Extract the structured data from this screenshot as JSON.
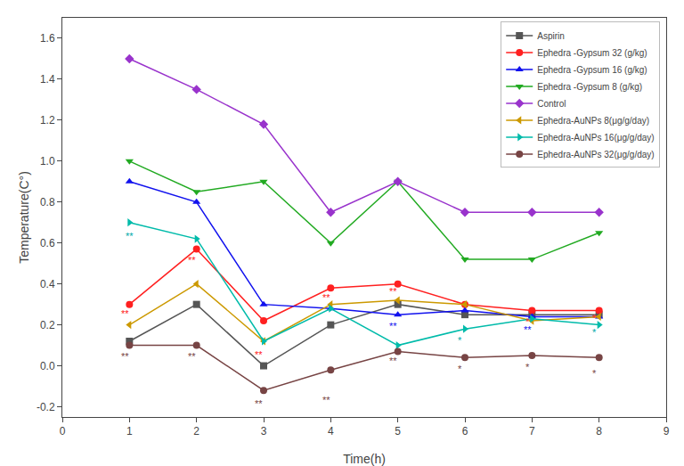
{
  "chart_data": {
    "type": "line",
    "xlabel": "Time(h)",
    "ylabel": "Temperature(C°)",
    "xlim": [
      0,
      9
    ],
    "ylim": [
      -0.25,
      1.7
    ],
    "xticks": [
      0,
      1,
      2,
      3,
      4,
      5,
      6,
      7,
      8,
      9
    ],
    "yticks": [
      -0.2,
      {
        "value": 0.0,
        "label": "0.0"
      },
      0.2,
      0.4,
      0.6,
      0.8,
      {
        "value": 1.0,
        "label": "1.0"
      },
      1.2,
      1.4,
      1.6
    ],
    "grid": false,
    "legend": "upper right",
    "x": [
      1,
      2,
      3,
      4,
      5,
      6,
      7,
      8
    ],
    "series": [
      {
        "name": "Aspirin",
        "color": "#555555",
        "marker": "square",
        "values": [
          0.12,
          0.3,
          0.0,
          0.2,
          0.3,
          0.25,
          0.25,
          0.25
        ]
      },
      {
        "name": "Ephedra -Gypsum 32 (g/kg)",
        "color": "#ff2020",
        "marker": "circle",
        "values": [
          0.3,
          0.57,
          0.22,
          0.38,
          0.4,
          0.3,
          0.27,
          0.27
        ]
      },
      {
        "name": "Ephedra -Gypsum 16 (g/kg)",
        "color": "#1111ee",
        "marker": "triangle-up",
        "values": [
          0.9,
          0.8,
          0.3,
          0.28,
          0.25,
          0.27,
          0.24,
          0.24
        ]
      },
      {
        "name": "Ephedra -Gypsum 8 (g/kg)",
        "color": "#22aa22",
        "marker": "triangle-down",
        "values": [
          1.0,
          0.85,
          0.9,
          0.6,
          0.9,
          0.52,
          0.52,
          0.65
        ]
      },
      {
        "name": "Control",
        "color": "#9933cc",
        "marker": "diamond",
        "values": [
          1.5,
          1.35,
          1.18,
          0.75,
          0.9,
          0.75,
          0.75,
          0.75
        ]
      },
      {
        "name": "Ephedra-AuNPs 8(μg/g/day)",
        "color": "#cc9900",
        "marker": "triangle-left",
        "values": [
          0.2,
          0.4,
          0.12,
          0.3,
          0.32,
          0.3,
          0.22,
          0.24
        ]
      },
      {
        "name": "Ephedra-AuNPs 16(μg/g/day)",
        "color": "#00bbaa",
        "marker": "triangle-right",
        "values": [
          0.7,
          0.62,
          0.12,
          0.28,
          0.1,
          0.18,
          0.23,
          0.2
        ]
      },
      {
        "name": "Ephedra-AuNPs 32(μg/g/day)",
        "color": "#774444",
        "marker": "circle",
        "values": [
          0.1,
          0.1,
          -0.12,
          -0.02,
          0.07,
          0.04,
          0.05,
          0.04
        ]
      }
    ],
    "annotations": [
      {
        "x": 1.0,
        "y": 0.6,
        "text": "**",
        "color": "#00aaaa"
      },
      {
        "x": 0.93,
        "y": 0.22,
        "text": "**",
        "color": "#ff2020"
      },
      {
        "x": 0.93,
        "y": 0.01,
        "text": "**",
        "color": "#774444"
      },
      {
        "x": 1.93,
        "y": 0.48,
        "text": "**",
        "color": "#ff2020"
      },
      {
        "x": 1.93,
        "y": 0.01,
        "text": "**",
        "color": "#774444"
      },
      {
        "x": 2.93,
        "y": 0.02,
        "text": "**",
        "color": "#ff2020"
      },
      {
        "x": 2.93,
        "y": -0.22,
        "text": "**",
        "color": "#774444"
      },
      {
        "x": 3.93,
        "y": 0.3,
        "text": "**",
        "color": "#ff2020"
      },
      {
        "x": 3.93,
        "y": -0.2,
        "text": "**",
        "color": "#774444"
      },
      {
        "x": 4.93,
        "y": 0.33,
        "text": "**",
        "color": "#ff2020"
      },
      {
        "x": 4.93,
        "y": 0.16,
        "text": "**",
        "color": "#1111ee"
      },
      {
        "x": 4.93,
        "y": -0.01,
        "text": "**",
        "color": "#774444"
      },
      {
        "x": 5.93,
        "y": 0.09,
        "text": "*",
        "color": "#00aaaa"
      },
      {
        "x": 5.93,
        "y": -0.05,
        "text": "*",
        "color": "#774444"
      },
      {
        "x": 6.93,
        "y": 0.18,
        "text": "*",
        "color": "#ff2020"
      },
      {
        "x": 6.93,
        "y": 0.14,
        "text": "**",
        "color": "#1111ee"
      },
      {
        "x": 6.93,
        "y": -0.04,
        "text": "*",
        "color": "#774444"
      },
      {
        "x": 7.93,
        "y": 0.2,
        "text": "*",
        "color": "#ff2020"
      },
      {
        "x": 7.93,
        "y": 0.13,
        "text": "*",
        "color": "#00aaaa"
      },
      {
        "x": 7.93,
        "y": -0.07,
        "text": "*",
        "color": "#774444"
      }
    ]
  }
}
